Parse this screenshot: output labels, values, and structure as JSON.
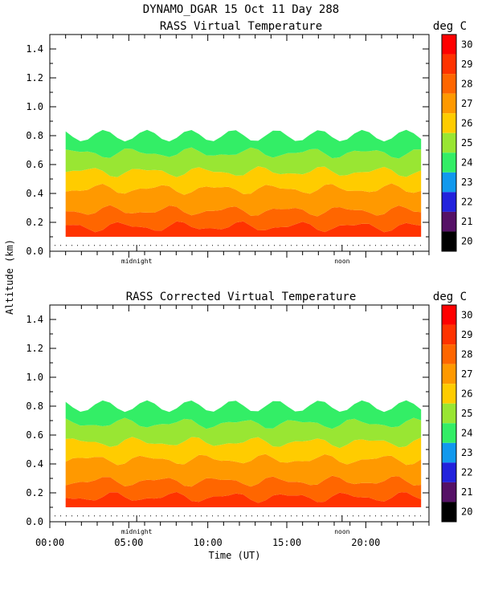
{
  "figure": {
    "title": "DYNAMO_DGAR  15 Oct 11 Day 288",
    "ylabel": "Altitude (km)",
    "xlabel": "Time (UT)"
  },
  "colorbar": {
    "unit_label": "deg C",
    "ticks": [
      "30",
      "29",
      "28",
      "27",
      "26",
      "25",
      "24",
      "23",
      "22",
      "21",
      "20"
    ],
    "colors": [
      "#ff0000",
      "#ff3300",
      "#ff6600",
      "#ff9900",
      "#ffcc00",
      "#99e633",
      "#33ee66",
      "#1199ee",
      "#2222dd",
      "#551166",
      "#000000"
    ]
  },
  "chart_data": [
    {
      "type": "heatmap",
      "title": "RASS Virtual Temperature",
      "xlabel": "Time (UT)",
      "ylabel": "Altitude (km)",
      "xlim": [
        0,
        24
      ],
      "ylim": [
        0,
        1.5
      ],
      "y_ticks": [
        "0.0",
        "0.2",
        "0.4",
        "0.6",
        "0.8",
        "1.0",
        "1.2",
        "1.4"
      ],
      "x_markers": [
        "midnight",
        "noon"
      ],
      "value_range_degC": [
        20,
        30
      ],
      "bands": [
        {
          "temp_degC": 29,
          "altitude_km": [
            0.1,
            0.17
          ]
        },
        {
          "temp_degC": 28,
          "altitude_km": [
            0.17,
            0.28
          ]
        },
        {
          "temp_degC": 27,
          "altitude_km": [
            0.28,
            0.43
          ]
        },
        {
          "temp_degC": 26,
          "altitude_km": [
            0.43,
            0.55
          ]
        },
        {
          "temp_degC": 25,
          "altitude_km": [
            0.55,
            0.68
          ]
        },
        {
          "temp_degC": 24,
          "altitude_km": [
            0.68,
            0.8
          ]
        }
      ]
    },
    {
      "type": "heatmap",
      "title": "RASS Corrected Virtual Temperature",
      "xlabel": "Time (UT)",
      "ylabel": "Altitude (km)",
      "xlim": [
        0,
        24
      ],
      "ylim": [
        0,
        1.5
      ],
      "y_ticks": [
        "0.0",
        "0.2",
        "0.4",
        "0.6",
        "0.8",
        "1.0",
        "1.2",
        "1.4"
      ],
      "x_ticks": [
        "00:00",
        "05:00",
        "10:00",
        "15:00",
        "20:00"
      ],
      "x_markers": [
        "midnight",
        "noon"
      ],
      "value_range_degC": [
        20,
        30
      ],
      "bands": [
        {
          "temp_degC": 29,
          "altitude_km": [
            0.1,
            0.17
          ]
        },
        {
          "temp_degC": 28,
          "altitude_km": [
            0.17,
            0.28
          ]
        },
        {
          "temp_degC": 27,
          "altitude_km": [
            0.28,
            0.43
          ]
        },
        {
          "temp_degC": 26,
          "altitude_km": [
            0.43,
            0.55
          ]
        },
        {
          "temp_degC": 25,
          "altitude_km": [
            0.55,
            0.68
          ]
        },
        {
          "temp_degC": 24,
          "altitude_km": [
            0.68,
            0.8
          ]
        }
      ]
    }
  ]
}
